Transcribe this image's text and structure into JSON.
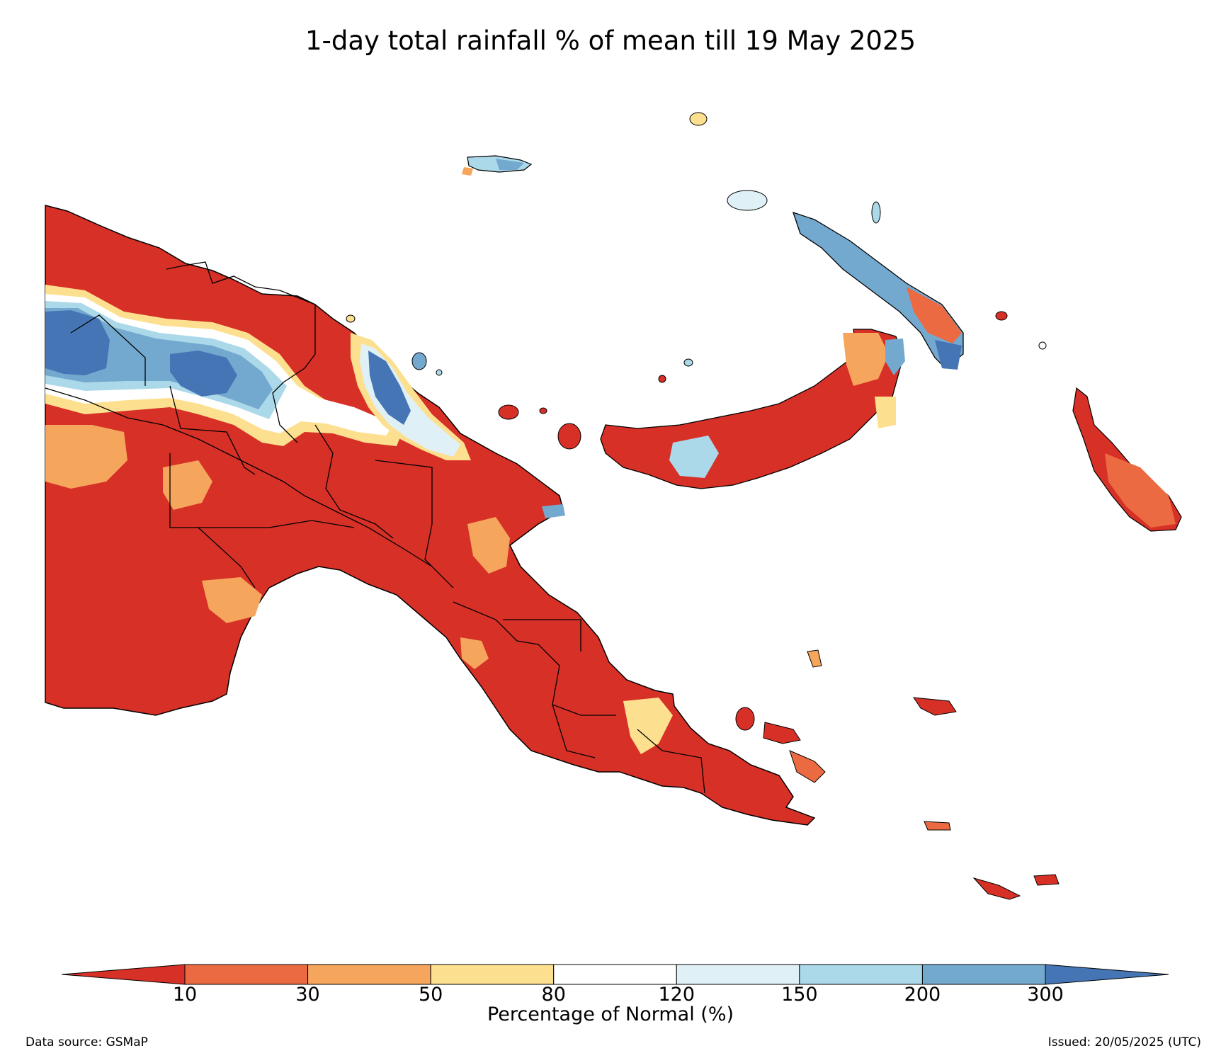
{
  "title": "1-day total rainfall % of mean till 19 May 2025",
  "legend": {
    "title": "Percentage of Normal (%)",
    "ticks": [
      "10",
      "30",
      "50",
      "80",
      "120",
      "150",
      "200",
      "300"
    ],
    "bins": [
      {
        "range": "<10",
        "color": "#d73027"
      },
      {
        "range": "10-30",
        "color": "#ec6a42"
      },
      {
        "range": "30-50",
        "color": "#f6a55c"
      },
      {
        "range": "50-80",
        "color": "#fde08f"
      },
      {
        "range": "80-120",
        "color": "#ffffff"
      },
      {
        "range": "120-150",
        "color": "#dff1f7"
      },
      {
        "range": "150-200",
        "color": "#abd9e9"
      },
      {
        "range": "200-300",
        "color": "#74a9cf"
      },
      {
        "range": ">300",
        "color": "#4575b4"
      }
    ]
  },
  "footer": {
    "source": "Data source: GSMaP",
    "issued": "Issued: 20/05/2025 (UTC)"
  }
}
